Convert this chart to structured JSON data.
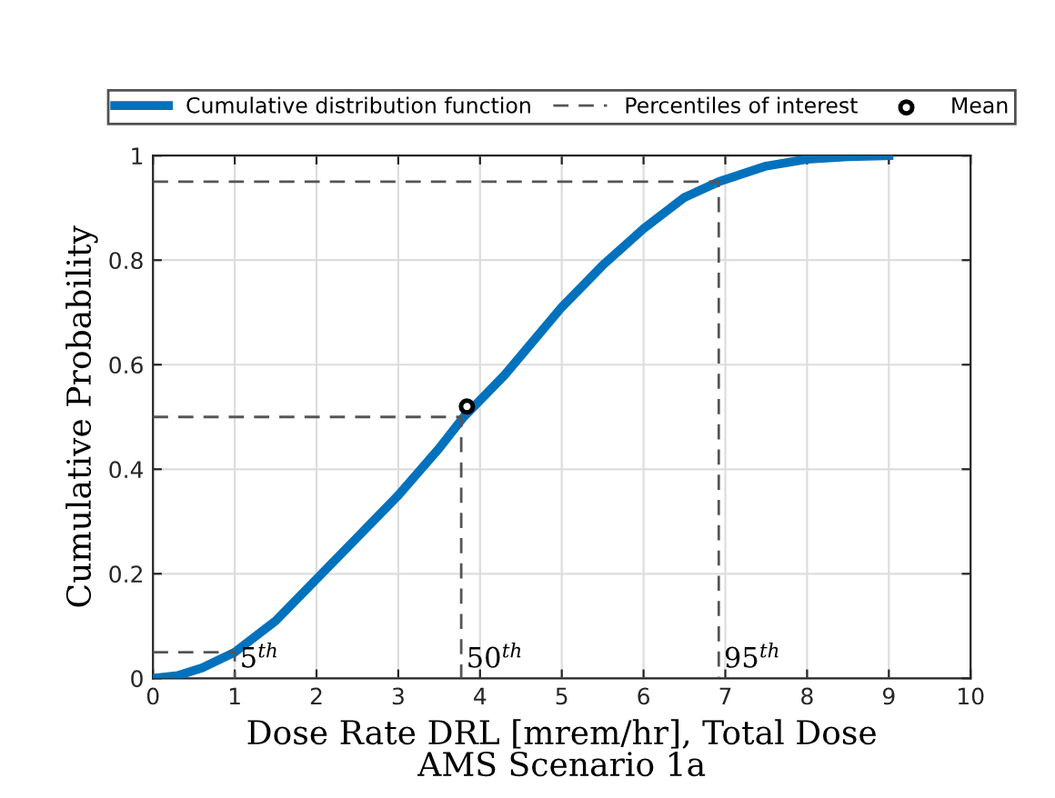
{
  "chart_data": {
    "type": "line",
    "xlabel": "Dose Rate DRL [mrem/hr], Total Dose\nAMS Scenario 1a",
    "ylabel": "Cumulative Probability",
    "xlim": [
      0,
      10
    ],
    "xticks": [
      0,
      1,
      2,
      3,
      4,
      5,
      6,
      7,
      8,
      9,
      10
    ],
    "ylim": [
      0,
      1
    ],
    "yticks": [
      0,
      0.2,
      0.4,
      0.6,
      0.8,
      1
    ],
    "grid": true,
    "legend": "top",
    "series": [
      {
        "name": "Cumulative distribution function",
        "color": "#0072bd",
        "line_style": "solid",
        "marker": "none",
        "x": [
          0,
          0.3,
          0.6,
          1.0,
          1.5,
          2,
          2.5,
          3,
          3.5,
          3.8,
          4.3,
          5,
          5.5,
          6,
          6.5,
          6.92,
          7.5,
          8,
          8.5,
          9
        ],
        "values": [
          0,
          0.005,
          0.02,
          0.05,
          0.11,
          0.19,
          0.27,
          0.35,
          0.44,
          0.5,
          0.58,
          0.71,
          0.79,
          0.86,
          0.92,
          0.95,
          0.98,
          0.993,
          0.998,
          1.0
        ]
      },
      {
        "name": "Percentiles of interest",
        "type": "line",
        "color": "#555555",
        "line_style": "dashed",
        "marker": "none",
        "x": [
          0,
          1.0,
          1.0,
          null,
          0,
          3.77,
          3.77,
          null,
          0,
          6.92,
          6.92
        ],
        "values": [
          0.05,
          0.05,
          0,
          null,
          0.5,
          0.5,
          0,
          null,
          0.95,
          0.95,
          0
        ]
      },
      {
        "name": "Mean",
        "type": "scatter",
        "color": "#000000",
        "marker": "circle",
        "x": [
          3.84
        ],
        "values": [
          0.52
        ]
      }
    ],
    "annotations": [
      {
        "text": "5$^{th}$",
        "x": 1.0,
        "y": 0
      },
      {
        "text": "50$^{th}$",
        "x": 3.77,
        "y": 0
      },
      {
        "text": "95$^{th}$",
        "x": 6.92,
        "y": 0
      }
    ]
  }
}
